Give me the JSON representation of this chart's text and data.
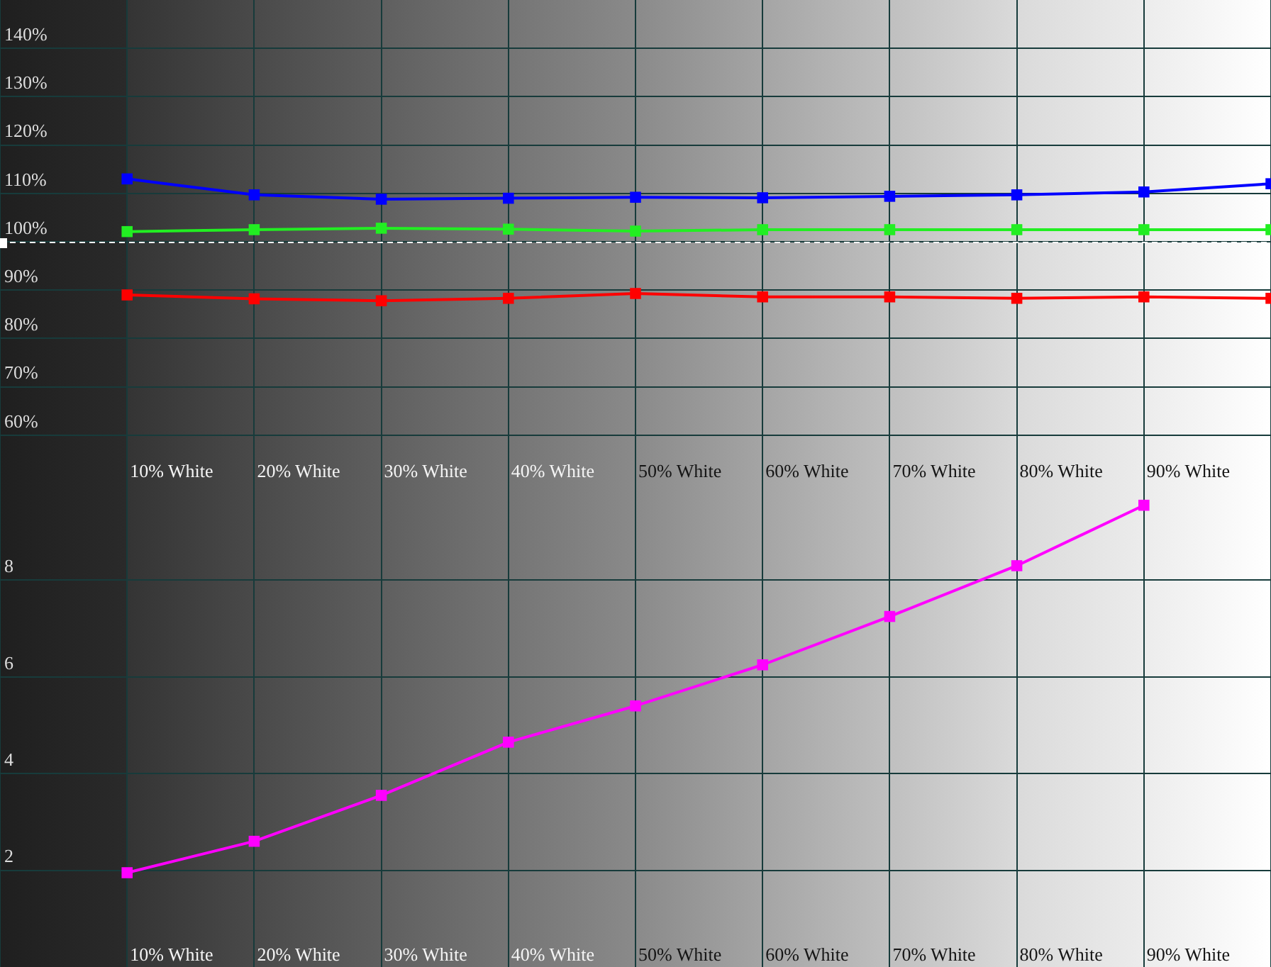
{
  "chart_data": [
    {
      "type": "line",
      "categories": [
        null,
        "10% White",
        "20% White",
        "30% White",
        "40% White",
        "50% White",
        "60% White",
        "70% White",
        "80% White",
        "90% White",
        null
      ],
      "series": [
        {
          "color": "#0000ff",
          "values": [
            null,
            113.0,
            109.7,
            108.8,
            109.0,
            109.2,
            109.1,
            109.4,
            109.7,
            110.3,
            112.0
          ]
        },
        {
          "color": "#22ee22",
          "values": [
            null,
            102.1,
            102.5,
            102.8,
            102.6,
            102.2,
            102.5,
            102.5,
            102.5,
            102.5,
            102.5
          ]
        },
        {
          "color": "#ff0000",
          "values": [
            null,
            89.0,
            88.2,
            87.8,
            88.3,
            89.3,
            88.6,
            88.6,
            88.3,
            88.6,
            88.3
          ]
        }
      ],
      "ylim": [
        50,
        150
      ],
      "yticks": [
        {
          "value": 60,
          "label": "60%"
        },
        {
          "value": 70,
          "label": "70%"
        },
        {
          "value": 80,
          "label": "80%"
        },
        {
          "value": 90,
          "label": "90%"
        },
        {
          "value": 100,
          "label": "100%"
        },
        {
          "value": 110,
          "label": "110%"
        },
        {
          "value": 120,
          "label": "120%"
        },
        {
          "value": 130,
          "label": "130%"
        },
        {
          "value": 140,
          "label": "140%"
        }
      ],
      "grid": true,
      "marker": "square",
      "ref_lines": [
        {
          "axis": "y",
          "value": 100,
          "color": "#ffffff",
          "line_style": "dashed"
        }
      ]
    },
    {
      "type": "line",
      "categories": [
        null,
        "10% White",
        "20% White",
        "30% White",
        "40% White",
        "50% White",
        "60% White",
        "70% White",
        "80% White",
        "90% White",
        null
      ],
      "series": [
        {
          "color": "#ff00ff",
          "values": [
            null,
            1.95,
            2.6,
            3.55,
            4.65,
            5.4,
            6.25,
            7.25,
            8.3,
            9.55,
            null
          ]
        }
      ],
      "ylim": [
        0,
        10
      ],
      "yticks": [
        2,
        4,
        6,
        8
      ],
      "grid": true,
      "marker": "square"
    }
  ]
}
